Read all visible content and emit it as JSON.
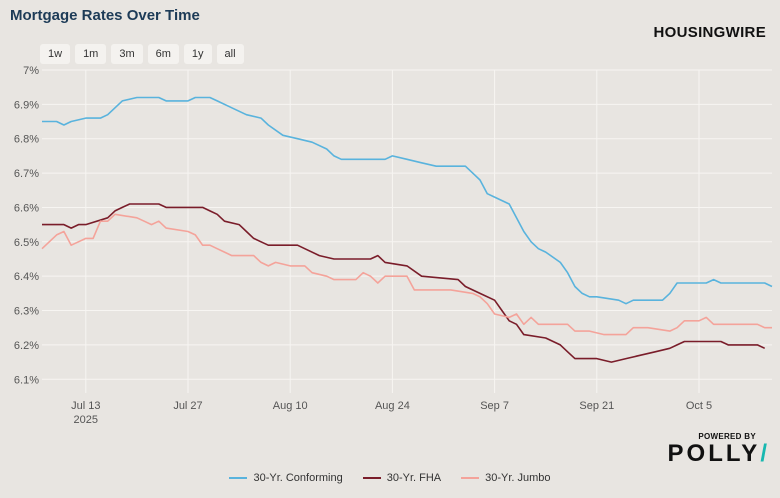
{
  "header": {
    "title": "Mortgage Rates Over Time"
  },
  "range_buttons": [
    "1w",
    "1m",
    "3m",
    "6m",
    "1y",
    "all"
  ],
  "branding": {
    "housingwire": "HOUSINGWIRE",
    "powered_by": "POWERED BY",
    "polly": "POLLY"
  },
  "chart_data": {
    "type": "line",
    "title": "Mortgage Rates Over Time",
    "xlabel": "",
    "ylabel": "",
    "x_ticks": [
      "Jul 13",
      "Jul 27",
      "Aug 10",
      "Aug 24",
      "Sep 7",
      "Sep 21",
      "Oct 5"
    ],
    "x_year_label": "2025",
    "y_ticks": [
      "6.1%",
      "6.2%",
      "6.3%",
      "6.4%",
      "6.5%",
      "6.6%",
      "6.7%",
      "6.8%",
      "6.9%",
      "7%"
    ],
    "ylim": [
      6.06,
      7.0
    ],
    "xlim": [
      "2025-07-07",
      "2025-10-15"
    ],
    "grid": true,
    "legend_position": "bottom",
    "series": [
      {
        "name": "30-Yr. Conforming",
        "color": "#59b3dd",
        "points": [
          [
            "2025-07-07",
            6.85
          ],
          [
            "2025-07-09",
            6.85
          ],
          [
            "2025-07-10",
            6.84
          ],
          [
            "2025-07-11",
            6.85
          ],
          [
            "2025-07-13",
            6.86
          ],
          [
            "2025-07-15",
            6.86
          ],
          [
            "2025-07-16",
            6.87
          ],
          [
            "2025-07-17",
            6.89
          ],
          [
            "2025-07-18",
            6.91
          ],
          [
            "2025-07-20",
            6.92
          ],
          [
            "2025-07-23",
            6.92
          ],
          [
            "2025-07-24",
            6.91
          ],
          [
            "2025-07-27",
            6.91
          ],
          [
            "2025-07-28",
            6.92
          ],
          [
            "2025-07-30",
            6.92
          ],
          [
            "2025-07-31",
            6.91
          ],
          [
            "2025-08-02",
            6.89
          ],
          [
            "2025-08-04",
            6.87
          ],
          [
            "2025-08-06",
            6.86
          ],
          [
            "2025-08-07",
            6.84
          ],
          [
            "2025-08-09",
            6.81
          ],
          [
            "2025-08-11",
            6.8
          ],
          [
            "2025-08-13",
            6.79
          ],
          [
            "2025-08-15",
            6.77
          ],
          [
            "2025-08-16",
            6.75
          ],
          [
            "2025-08-17",
            6.74
          ],
          [
            "2025-08-23",
            6.74
          ],
          [
            "2025-08-24",
            6.75
          ],
          [
            "2025-08-26",
            6.74
          ],
          [
            "2025-08-28",
            6.73
          ],
          [
            "2025-08-30",
            6.72
          ],
          [
            "2025-09-03",
            6.72
          ],
          [
            "2025-09-04",
            6.7
          ],
          [
            "2025-09-05",
            6.68
          ],
          [
            "2025-09-06",
            6.64
          ],
          [
            "2025-09-07",
            6.63
          ],
          [
            "2025-09-09",
            6.61
          ],
          [
            "2025-09-10",
            6.57
          ],
          [
            "2025-09-11",
            6.53
          ],
          [
            "2025-09-12",
            6.5
          ],
          [
            "2025-09-13",
            6.48
          ],
          [
            "2025-09-14",
            6.47
          ],
          [
            "2025-09-16",
            6.44
          ],
          [
            "2025-09-17",
            6.41
          ],
          [
            "2025-09-18",
            6.37
          ],
          [
            "2025-09-19",
            6.35
          ],
          [
            "2025-09-20",
            6.34
          ],
          [
            "2025-09-21",
            6.34
          ],
          [
            "2025-09-24",
            6.33
          ],
          [
            "2025-09-25",
            6.32
          ],
          [
            "2025-09-26",
            6.33
          ],
          [
            "2025-09-30",
            6.33
          ],
          [
            "2025-10-01",
            6.35
          ],
          [
            "2025-10-02",
            6.38
          ],
          [
            "2025-10-06",
            6.38
          ],
          [
            "2025-10-07",
            6.39
          ],
          [
            "2025-10-08",
            6.38
          ],
          [
            "2025-10-14",
            6.38
          ],
          [
            "2025-10-15",
            6.37
          ]
        ]
      },
      {
        "name": "30-Yr. FHA",
        "color": "#7a1d2a",
        "points": [
          [
            "2025-07-07",
            6.55
          ],
          [
            "2025-07-10",
            6.55
          ],
          [
            "2025-07-11",
            6.54
          ],
          [
            "2025-07-12",
            6.55
          ],
          [
            "2025-07-13",
            6.55
          ],
          [
            "2025-07-16",
            6.57
          ],
          [
            "2025-07-17",
            6.59
          ],
          [
            "2025-07-18",
            6.6
          ],
          [
            "2025-07-19",
            6.61
          ],
          [
            "2025-07-23",
            6.61
          ],
          [
            "2025-07-24",
            6.6
          ],
          [
            "2025-07-29",
            6.6
          ],
          [
            "2025-07-30",
            6.59
          ],
          [
            "2025-07-31",
            6.58
          ],
          [
            "2025-08-01",
            6.56
          ],
          [
            "2025-08-03",
            6.55
          ],
          [
            "2025-08-04",
            6.53
          ],
          [
            "2025-08-05",
            6.51
          ],
          [
            "2025-08-06",
            6.5
          ],
          [
            "2025-08-07",
            6.49
          ],
          [
            "2025-08-11",
            6.49
          ],
          [
            "2025-08-12",
            6.48
          ],
          [
            "2025-08-14",
            6.46
          ],
          [
            "2025-08-16",
            6.45
          ],
          [
            "2025-08-21",
            6.45
          ],
          [
            "2025-08-22",
            6.46
          ],
          [
            "2025-08-23",
            6.44
          ],
          [
            "2025-08-26",
            6.43
          ],
          [
            "2025-08-28",
            6.4
          ],
          [
            "2025-09-02",
            6.39
          ],
          [
            "2025-09-03",
            6.37
          ],
          [
            "2025-09-05",
            6.35
          ],
          [
            "2025-09-07",
            6.33
          ],
          [
            "2025-09-08",
            6.3
          ],
          [
            "2025-09-09",
            6.27
          ],
          [
            "2025-09-10",
            6.26
          ],
          [
            "2025-09-11",
            6.23
          ],
          [
            "2025-09-14",
            6.22
          ],
          [
            "2025-09-16",
            6.2
          ],
          [
            "2025-09-17",
            6.18
          ],
          [
            "2025-09-18",
            6.16
          ],
          [
            "2025-09-21",
            6.16
          ],
          [
            "2025-09-23",
            6.15
          ],
          [
            "2025-09-25",
            6.16
          ],
          [
            "2025-09-27",
            6.17
          ],
          [
            "2025-09-29",
            6.18
          ],
          [
            "2025-10-01",
            6.19
          ],
          [
            "2025-10-02",
            6.2
          ],
          [
            "2025-10-03",
            6.21
          ],
          [
            "2025-10-08",
            6.21
          ],
          [
            "2025-10-09",
            6.2
          ],
          [
            "2025-10-13",
            6.2
          ],
          [
            "2025-10-14",
            6.19
          ]
        ]
      },
      {
        "name": "30-Yr. Jumbo",
        "color": "#f4a39a",
        "points": [
          [
            "2025-07-07",
            6.48
          ],
          [
            "2025-07-08",
            6.5
          ],
          [
            "2025-07-09",
            6.52
          ],
          [
            "2025-07-10",
            6.53
          ],
          [
            "2025-07-11",
            6.49
          ],
          [
            "2025-07-12",
            6.5
          ],
          [
            "2025-07-13",
            6.51
          ],
          [
            "2025-07-14",
            6.51
          ],
          [
            "2025-07-15",
            6.56
          ],
          [
            "2025-07-16",
            6.56
          ],
          [
            "2025-07-17",
            6.58
          ],
          [
            "2025-07-20",
            6.57
          ],
          [
            "2025-07-21",
            6.56
          ],
          [
            "2025-07-22",
            6.55
          ],
          [
            "2025-07-23",
            6.56
          ],
          [
            "2025-07-24",
            6.54
          ],
          [
            "2025-07-27",
            6.53
          ],
          [
            "2025-07-28",
            6.52
          ],
          [
            "2025-07-29",
            6.49
          ],
          [
            "2025-07-30",
            6.49
          ],
          [
            "2025-07-31",
            6.48
          ],
          [
            "2025-08-01",
            6.47
          ],
          [
            "2025-08-02",
            6.46
          ],
          [
            "2025-08-05",
            6.46
          ],
          [
            "2025-08-06",
            6.44
          ],
          [
            "2025-08-07",
            6.43
          ],
          [
            "2025-08-08",
            6.44
          ],
          [
            "2025-08-10",
            6.43
          ],
          [
            "2025-08-12",
            6.43
          ],
          [
            "2025-08-13",
            6.41
          ],
          [
            "2025-08-15",
            6.4
          ],
          [
            "2025-08-16",
            6.39
          ],
          [
            "2025-08-19",
            6.39
          ],
          [
            "2025-08-20",
            6.41
          ],
          [
            "2025-08-21",
            6.4
          ],
          [
            "2025-08-22",
            6.38
          ],
          [
            "2025-08-23",
            6.4
          ],
          [
            "2025-08-24",
            6.4
          ],
          [
            "2025-08-26",
            6.4
          ],
          [
            "2025-08-27",
            6.36
          ],
          [
            "2025-08-31",
            6.36
          ],
          [
            "2025-09-01",
            6.36
          ],
          [
            "2025-09-04",
            6.35
          ],
          [
            "2025-09-05",
            6.34
          ],
          [
            "2025-09-06",
            6.32
          ],
          [
            "2025-09-07",
            6.29
          ],
          [
            "2025-09-09",
            6.28
          ],
          [
            "2025-09-10",
            6.29
          ],
          [
            "2025-09-11",
            6.26
          ],
          [
            "2025-09-12",
            6.28
          ],
          [
            "2025-09-13",
            6.26
          ],
          [
            "2025-09-17",
            6.26
          ],
          [
            "2025-09-18",
            6.24
          ],
          [
            "2025-09-20",
            6.24
          ],
          [
            "2025-09-22",
            6.23
          ],
          [
            "2025-09-25",
            6.23
          ],
          [
            "2025-09-26",
            6.25
          ],
          [
            "2025-09-28",
            6.25
          ],
          [
            "2025-10-01",
            6.24
          ],
          [
            "2025-10-02",
            6.25
          ],
          [
            "2025-10-03",
            6.27
          ],
          [
            "2025-10-05",
            6.27
          ],
          [
            "2025-10-06",
            6.28
          ],
          [
            "2025-10-07",
            6.26
          ],
          [
            "2025-10-09",
            6.26
          ],
          [
            "2025-10-13",
            6.26
          ],
          [
            "2025-10-14",
            6.25
          ],
          [
            "2025-10-15",
            6.25
          ]
        ]
      }
    ]
  }
}
